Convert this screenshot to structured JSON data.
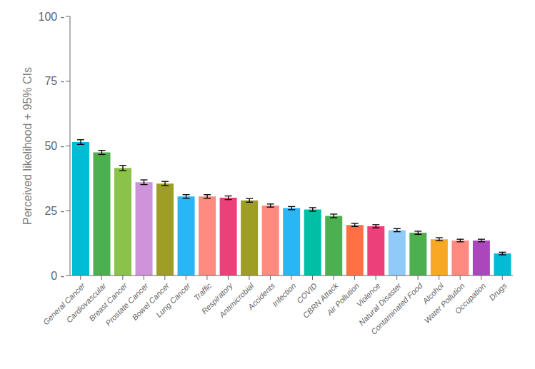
{
  "chart_data": {
    "type": "bar",
    "categories": [
      "General Cancer",
      "Cardiovascular",
      "Breast Cancer",
      "Prostate Cancer",
      "Bowel Cancer",
      "Lung Cancer",
      "Traffic",
      "Respiratory",
      "Antimicrobial",
      "Accidents",
      "Infection",
      "COVID",
      "CBRN Attack",
      "Air Pollution",
      "Violence",
      "Natural Disaster",
      "Contaminated Food",
      "Alcohol",
      "Water Pollution",
      "Occupation",
      "Drugs"
    ],
    "values": [
      51.5,
      47.5,
      41.5,
      36.0,
      35.5,
      30.5,
      30.5,
      30.0,
      29.0,
      27.0,
      26.0,
      25.5,
      23.0,
      19.5,
      19.0,
      17.5,
      16.5,
      14.0,
      13.5,
      13.5,
      8.5
    ],
    "errors": [
      0.9,
      0.8,
      1.0,
      0.9,
      0.8,
      0.7,
      0.7,
      0.7,
      0.7,
      0.6,
      0.6,
      0.7,
      0.7,
      0.6,
      0.6,
      0.6,
      0.6,
      0.6,
      0.5,
      0.5,
      0.5
    ],
    "colors": [
      "#00BCD4",
      "#4CAF50",
      "#8BC34A",
      "#CE93D8",
      "#9E9D24",
      "#29B6F6",
      "#FF8A80",
      "#EC407A",
      "#9E9D24",
      "#FF8A80",
      "#29B6F6",
      "#00BFA5",
      "#4CAF50",
      "#FF7043",
      "#EC407A",
      "#90CAF9",
      "#4CAF50",
      "#F9A825",
      "#FF8A80",
      "#AB47BC",
      "#00BCD4"
    ],
    "ylabel": "Perceived likelihood + 95% CIs",
    "ylim": [
      0,
      100
    ],
    "yticks": [
      {
        "value": 0,
        "label": "0 -"
      },
      {
        "value": 25,
        "label": "25 -"
      },
      {
        "value": 50,
        "label": "50 -"
      },
      {
        "value": 75,
        "label": "75 -"
      },
      {
        "value": 100,
        "label": "100 -"
      }
    ],
    "grid": false
  }
}
